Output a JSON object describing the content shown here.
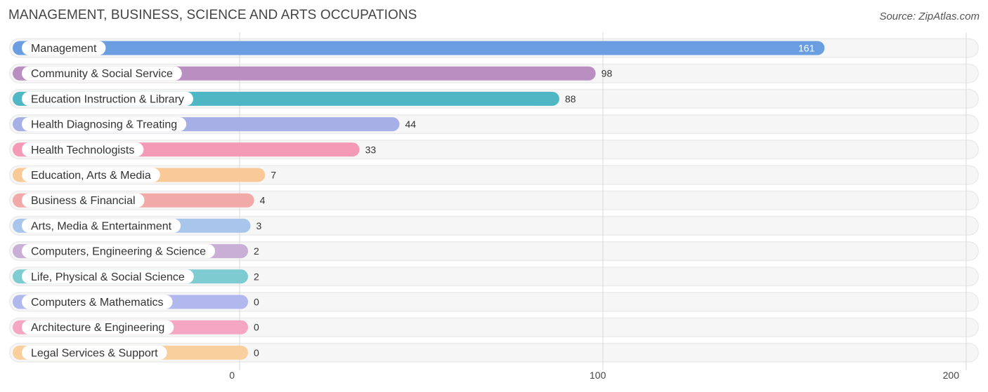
{
  "chart_data": {
    "type": "bar",
    "orientation": "horizontal",
    "title": "MANAGEMENT, BUSINESS, SCIENCE AND ARTS OCCUPATIONS",
    "source": "Source: ZipAtlas.com",
    "xlim": [
      0,
      200
    ],
    "xticks": [
      0,
      100,
      200
    ],
    "categories": [
      "Management",
      "Community & Social Service",
      "Education Instruction & Library",
      "Health Diagnosing & Treating",
      "Health Technologists",
      "Education, Arts & Media",
      "Business & Financial",
      "Arts, Media & Entertainment",
      "Computers, Engineering & Science",
      "Life, Physical & Social Science",
      "Computers & Mathematics",
      "Architecture & Engineering",
      "Legal Services & Support"
    ],
    "values": [
      161,
      98,
      88,
      44,
      33,
      7,
      4,
      3,
      2,
      2,
      0,
      0,
      0
    ],
    "colors": [
      "#6a9ee0",
      "#b98fc2",
      "#4fb7c4",
      "#a6b0e6",
      "#f59ab6",
      "#f9c998",
      "#f2aaa8",
      "#a8c6ec",
      "#c9aed6",
      "#7ecbd2",
      "#b0b8ee",
      "#f5a6c2",
      "#f9cf9e"
    ]
  }
}
